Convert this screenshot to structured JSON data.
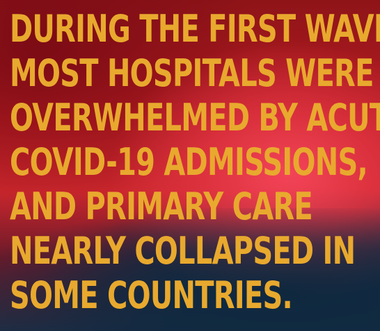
{
  "headline": {
    "lines": [
      "DURING THE FIRST WAVES,",
      "MOST HOSPITALS WERE",
      "OVERWHELMED BY ACUTE",
      "COVID-19 ADMISSIONS,",
      "AND PRIMARY CARE",
      "NEARLY COLLAPSED IN",
      "SOME COUNTRIES."
    ]
  },
  "colors": {
    "text": "#e8a92e",
    "background_top": "#8e1418",
    "background_mid": "#c8262c",
    "background_bottom": "#1e2d44"
  }
}
